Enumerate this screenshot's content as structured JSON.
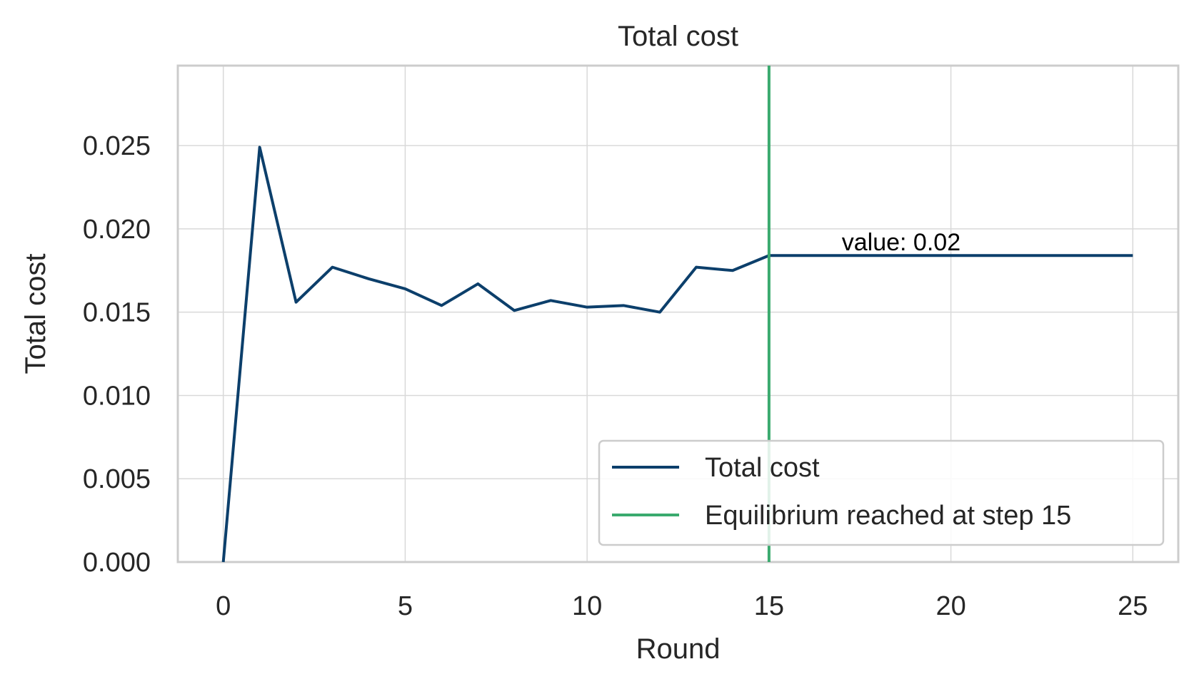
{
  "chart_data": {
    "type": "line",
    "title": "Total cost",
    "xlabel": "Round",
    "ylabel": "Total cost",
    "xlim": [
      -1.25,
      26.25
    ],
    "ylim": [
      0,
      0.0298
    ],
    "x_ticks": [
      0,
      5,
      10,
      15,
      20,
      25
    ],
    "x_tick_labels": [
      "0",
      "5",
      "10",
      "15",
      "20",
      "25"
    ],
    "y_ticks": [
      0,
      0.005,
      0.01,
      0.015,
      0.02,
      0.025
    ],
    "y_tick_labels": [
      "0.000",
      "0.005",
      "0.010",
      "0.015",
      "0.020",
      "0.025"
    ],
    "grid": true,
    "legend_position": "lower-right",
    "series": [
      {
        "name": "Total cost",
        "color": "#0c3f6b",
        "x": [
          0,
          1,
          2,
          3,
          4,
          5,
          6,
          7,
          8,
          9,
          10,
          11,
          12,
          13,
          14,
          15,
          16,
          17,
          18,
          19,
          20,
          21,
          22,
          23,
          24,
          25
        ],
        "values": [
          0.0,
          0.0249,
          0.0156,
          0.0177,
          0.017,
          0.0164,
          0.0154,
          0.0167,
          0.0151,
          0.0157,
          0.0153,
          0.0154,
          0.015,
          0.0177,
          0.0175,
          0.0184,
          0.0184,
          0.0184,
          0.0184,
          0.0184,
          0.0184,
          0.0184,
          0.0184,
          0.0184,
          0.0184,
          0.0184
        ]
      }
    ],
    "vline": {
      "name": "Equilibrium reached at step 15",
      "x": 15,
      "color": "#3aaa6e"
    },
    "annotation": {
      "text": "value: 0.02",
      "x": 17,
      "y": 0.0187
    }
  }
}
